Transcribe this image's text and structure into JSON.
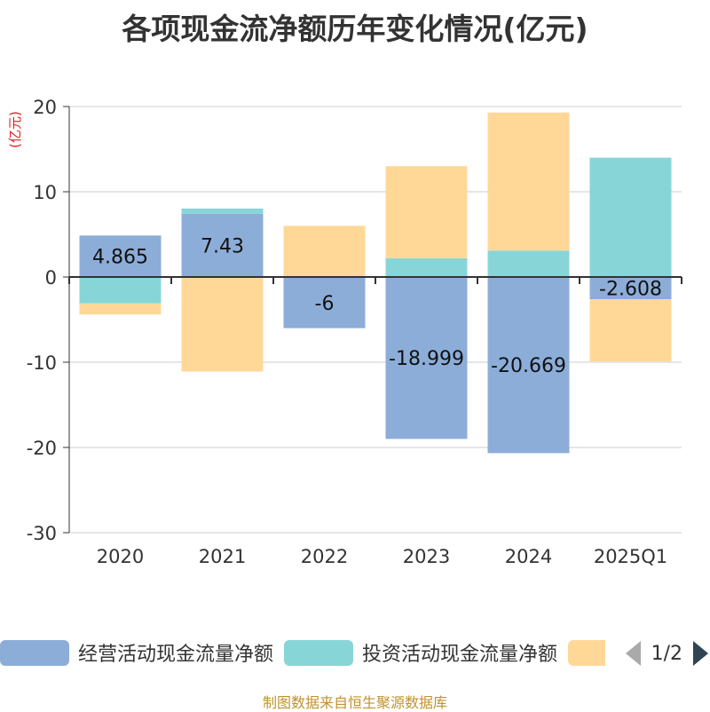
{
  "title": "各项现金流净额历年变化情况(亿元)",
  "source": "制图数据来自恒生聚源数据库",
  "legend": {
    "items": [
      {
        "label": "经营活动现金流量净额",
        "color": "#8dadd9"
      },
      {
        "label": "投资活动现金流量净额",
        "color": "#88d5d8"
      },
      {
        "label": "",
        "color": "#ffd898"
      }
    ],
    "page": "1/2"
  },
  "chart_data": {
    "type": "bar",
    "stacked": true,
    "categories": [
      "2020",
      "2021",
      "2022",
      "2023",
      "2024",
      "2025Q1"
    ],
    "y_unit": "(亿元)",
    "ylim": [
      -30,
      20
    ],
    "yticks": [
      -30,
      -20,
      -10,
      0,
      10,
      20
    ],
    "grid": true,
    "legend_position": "bottom",
    "series": [
      {
        "name": "经营活动现金流量净额",
        "color": "#8dadd9",
        "values": [
          4.865,
          7.43,
          -6,
          -18.999,
          -20.669,
          -2.608
        ],
        "show_labels": true
      },
      {
        "name": "投资活动现金流量净额",
        "color": "#88d5d8",
        "values": [
          -3.1,
          0.6,
          0,
          2.2,
          3.1,
          14
        ],
        "show_labels": false
      },
      {
        "color": "#ffd898",
        "values": [
          -1.3,
          -11.1,
          6,
          10.8,
          16.2,
          -7.3
        ],
        "show_labels": false
      }
    ]
  }
}
